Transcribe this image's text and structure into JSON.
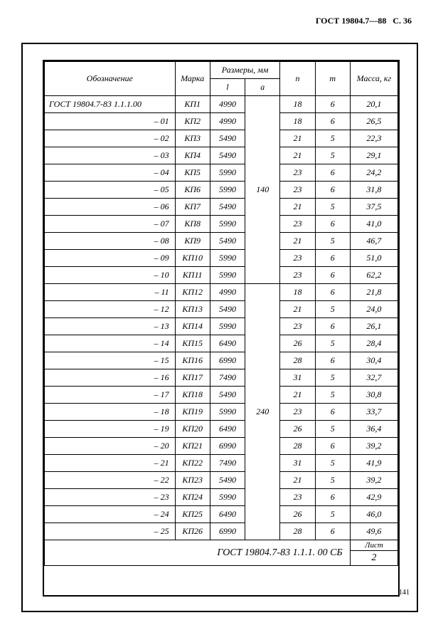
{
  "header": {
    "standard": "ГОСТ 19804.7—88",
    "page": "С. 36"
  },
  "table": {
    "headers": {
      "designation": "Обозначение",
      "marka": "Марка",
      "dimensions": "Размеры, мм",
      "l": "l",
      "a": "a",
      "n": "n",
      "m": "m",
      "mass": "Масса, кг"
    },
    "groups": [
      {
        "a_value": "140",
        "rows": [
          {
            "designation": "ГОСТ 19804.7-83  1.1.1.00",
            "first": true,
            "marka": "КП1",
            "l": "4990",
            "n": "18",
            "m": "6",
            "mass": "20,1"
          },
          {
            "designation": "– 01",
            "marka": "КП2",
            "l": "4990",
            "n": "18",
            "m": "6",
            "mass": "26,5"
          },
          {
            "designation": "– 02",
            "marka": "КП3",
            "l": "5490",
            "n": "21",
            "m": "5",
            "mass": "22,3"
          },
          {
            "designation": "– 03",
            "marka": "КП4",
            "l": "5490",
            "n": "21",
            "m": "5",
            "mass": "29,1"
          },
          {
            "designation": "– 04",
            "marka": "КП5",
            "l": "5990",
            "n": "23",
            "m": "6",
            "mass": "24,2"
          },
          {
            "designation": "– 05",
            "marka": "КП6",
            "l": "5990",
            "n": "23",
            "m": "6",
            "mass": "31,8"
          },
          {
            "designation": "– 06",
            "marka": "КП7",
            "l": "5490",
            "n": "21",
            "m": "5",
            "mass": "37,5"
          },
          {
            "designation": "– 07",
            "marka": "КП8",
            "l": "5990",
            "n": "23",
            "m": "6",
            "mass": "41,0"
          },
          {
            "designation": "– 08",
            "marka": "КП9",
            "l": "5490",
            "n": "21",
            "m": "5",
            "mass": "46,7"
          },
          {
            "designation": "– 09",
            "marka": "КП10",
            "l": "5990",
            "n": "23",
            "m": "6",
            "mass": "51,0"
          },
          {
            "designation": "– 10",
            "marka": "КП11",
            "l": "5990",
            "n": "23",
            "m": "6",
            "mass": "62,2"
          }
        ]
      },
      {
        "a_value": "240",
        "rows": [
          {
            "designation": "– 11",
            "marka": "КП12",
            "l": "4990",
            "n": "18",
            "m": "6",
            "mass": "21,8"
          },
          {
            "designation": "– 12",
            "marka": "КП13",
            "l": "5490",
            "n": "21",
            "m": "5",
            "mass": "24,0"
          },
          {
            "designation": "– 13",
            "marka": "КП14",
            "l": "5990",
            "n": "23",
            "m": "6",
            "mass": "26,1"
          },
          {
            "designation": "– 14",
            "marka": "КП15",
            "l": "6490",
            "n": "26",
            "m": "5",
            "mass": "28,4"
          },
          {
            "designation": "– 15",
            "marka": "КП16",
            "l": "6990",
            "n": "28",
            "m": "6",
            "mass": "30,4"
          },
          {
            "designation": "– 16",
            "marka": "КП17",
            "l": "7490",
            "n": "31",
            "m": "5",
            "mass": "32,7"
          },
          {
            "designation": "– 17",
            "marka": "КП18",
            "l": "5490",
            "n": "21",
            "m": "5",
            "mass": "30,8"
          },
          {
            "designation": "– 18",
            "marka": "КП19",
            "l": "5990",
            "n": "23",
            "m": "6",
            "mass": "33,7"
          },
          {
            "designation": "– 19",
            "marka": "КП20",
            "l": "6490",
            "n": "26",
            "m": "5",
            "mass": "36,4"
          },
          {
            "designation": "– 20",
            "marka": "КП21",
            "l": "6990",
            "n": "28",
            "m": "6",
            "mass": "39,2"
          },
          {
            "designation": "– 21",
            "marka": "КП22",
            "l": "7490",
            "n": "31",
            "m": "5",
            "mass": "41,9"
          },
          {
            "designation": "– 22",
            "marka": "КП23",
            "l": "5490",
            "n": "21",
            "m": "5",
            "mass": "39,2"
          },
          {
            "designation": "– 23",
            "marka": "КП24",
            "l": "5990",
            "n": "23",
            "m": "6",
            "mass": "42,9"
          },
          {
            "designation": "– 24",
            "marka": "КП25",
            "l": "6490",
            "n": "26",
            "m": "5",
            "mass": "46,0"
          },
          {
            "designation": "– 25",
            "marka": "КП26",
            "l": "6990",
            "n": "28",
            "m": "6",
            "mass": "49,6"
          }
        ]
      }
    ]
  },
  "footer": {
    "spec": "ГОСТ 19804.7-83  1.1.1. 00 СБ",
    "list_label": "Лист",
    "list_number": "2"
  },
  "page_number": "141"
}
